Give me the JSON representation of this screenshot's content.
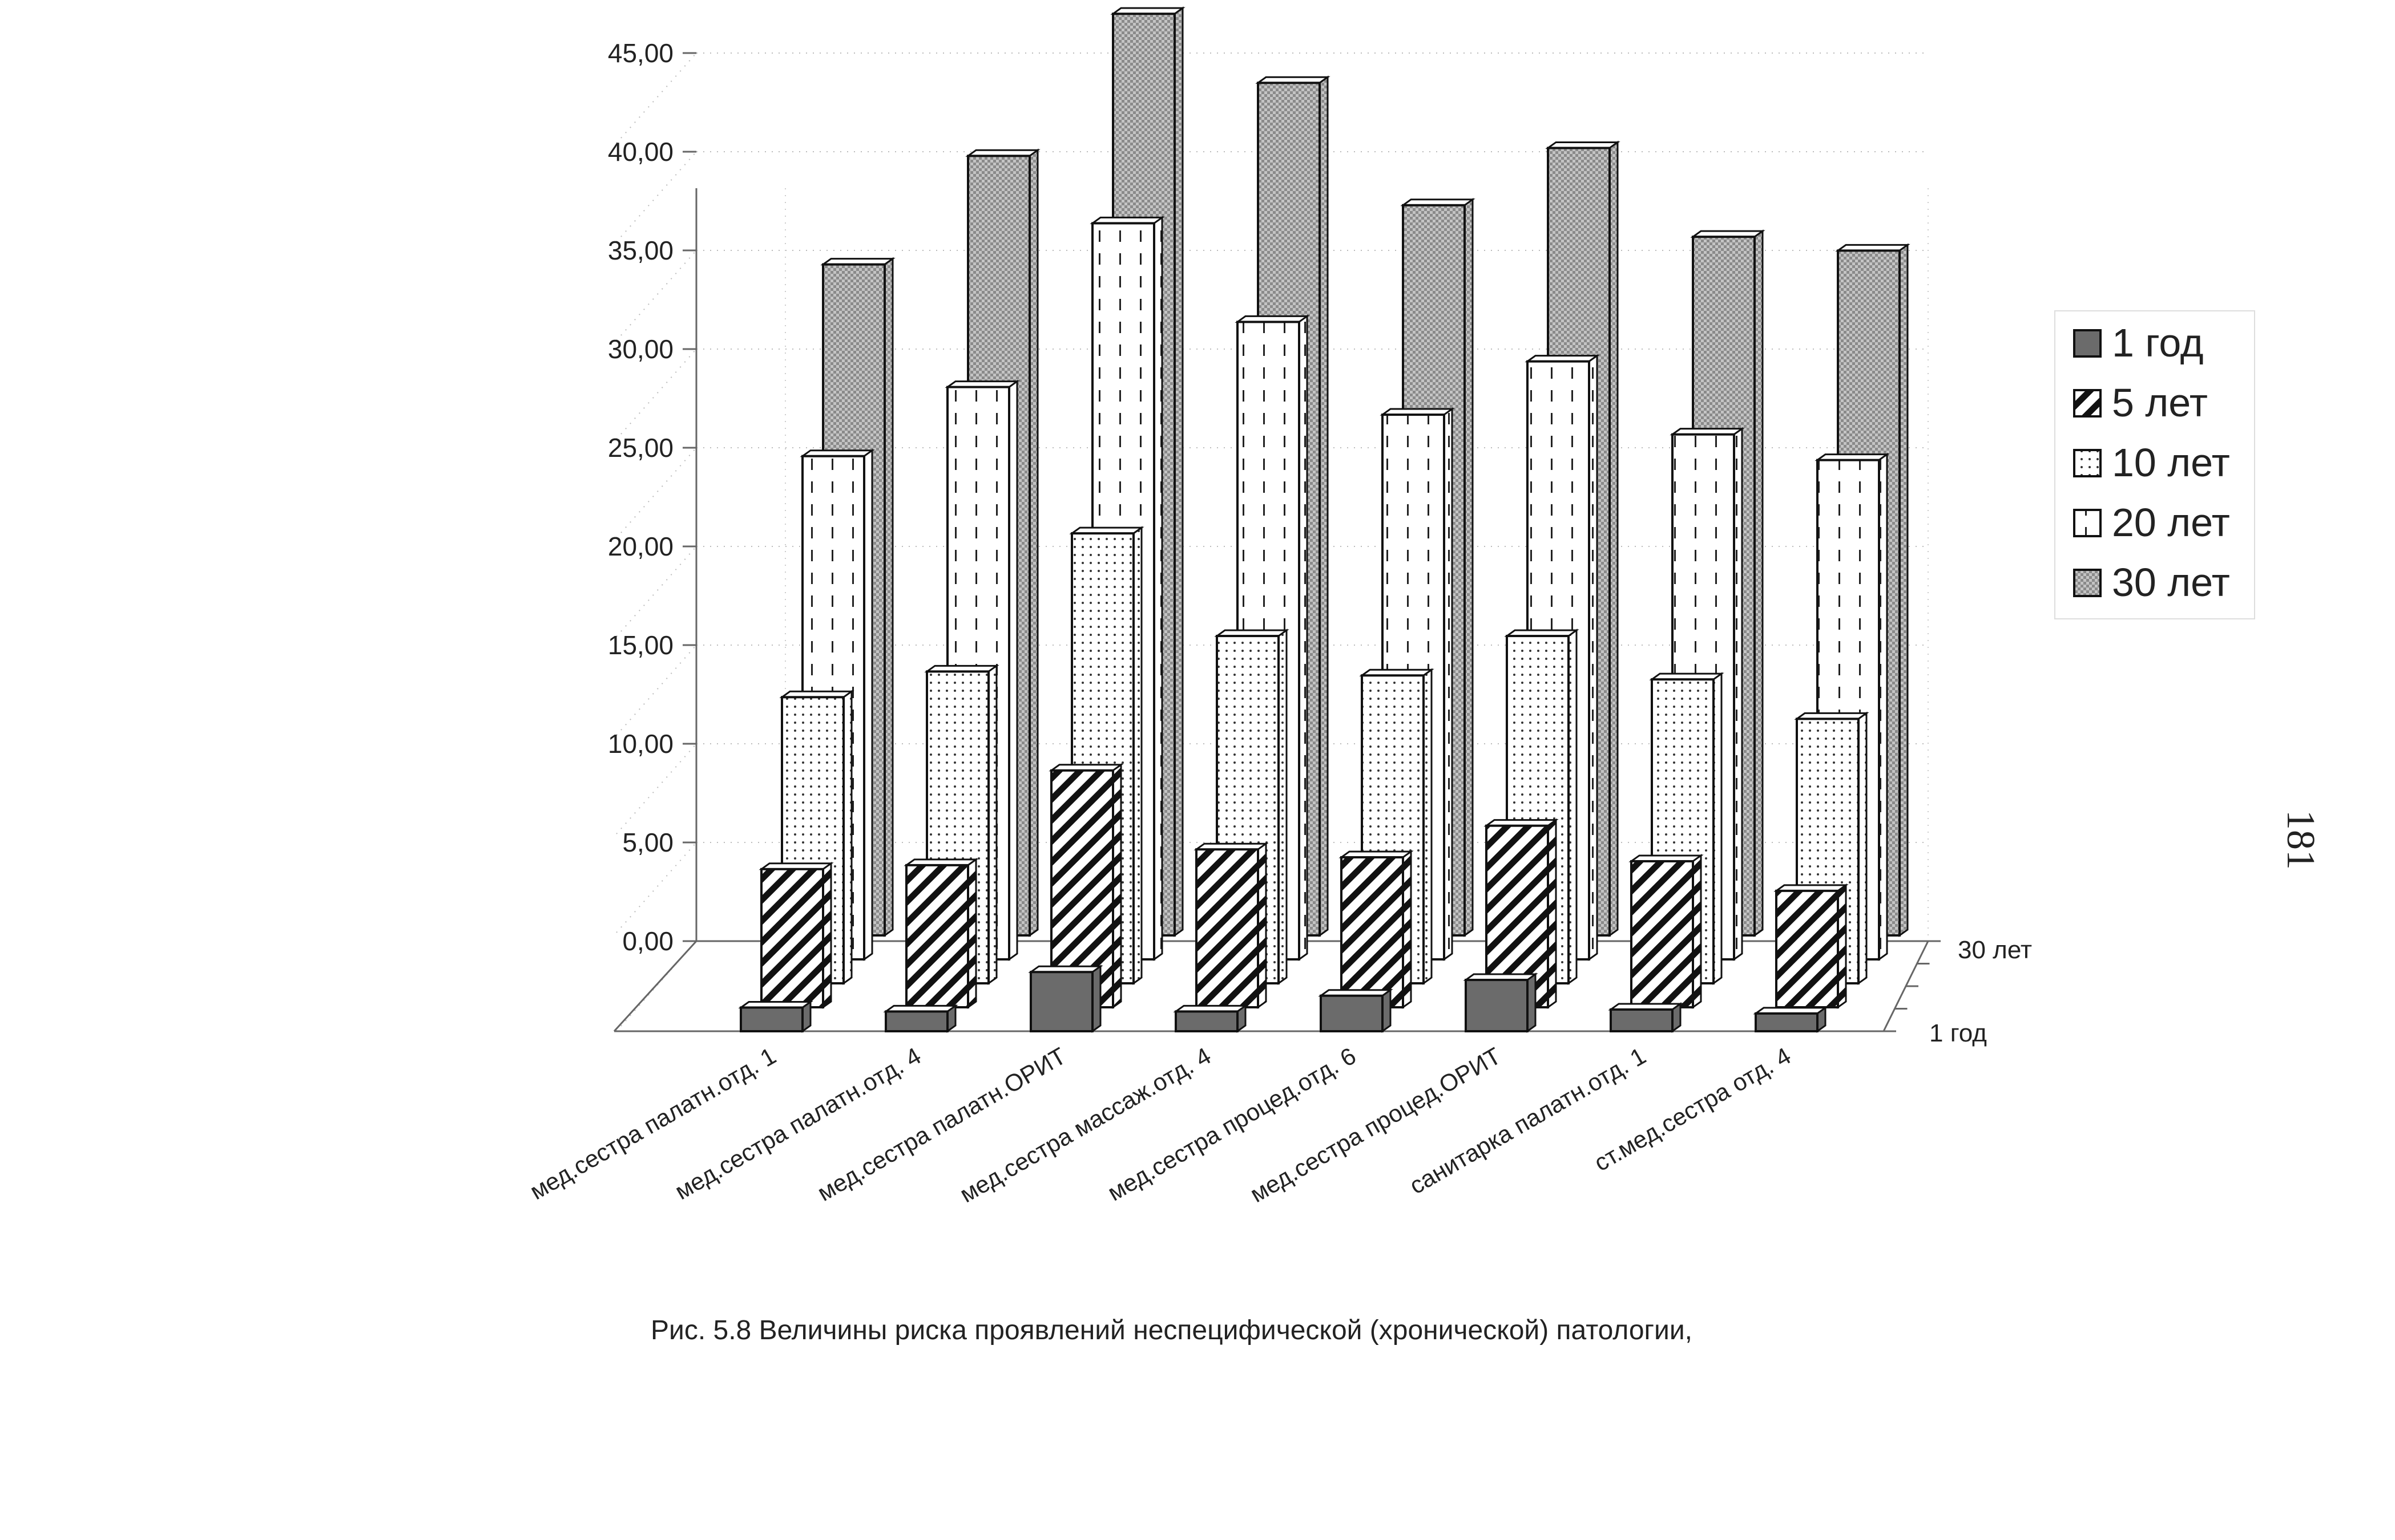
{
  "chart_data": {
    "type": "bar",
    "categories": [
      "мед.сестра палатн.отд. 1",
      "мед.сестра палатн.отд. 4",
      "мед.сестра палатн.ОРИТ",
      "мед.сестра массаж.отд. 4",
      "мед.сестра процед.отд. 6",
      "мед.сестра процед.ОРИТ",
      "санитарка палатн.отд. 1",
      "ст.мед.сестра отд. 4"
    ],
    "series": [
      {
        "name": "1 год",
        "values": [
          1.2,
          1.0,
          3.0,
          1.0,
          1.8,
          2.6,
          1.1,
          0.9
        ],
        "color": "#6b6b6b",
        "pattern": "solid-dark"
      },
      {
        "name": "5 лет",
        "values": [
          7.0,
          7.2,
          12.0,
          8.0,
          7.6,
          9.2,
          7.4,
          5.9
        ],
        "color": "#ffffff",
        "pattern": "diagonal-hatch"
      },
      {
        "name": "10 лет",
        "values": [
          14.5,
          15.8,
          22.8,
          17.6,
          15.6,
          17.6,
          15.4,
          13.4
        ],
        "color": "#ffffff",
        "pattern": "dotted"
      },
      {
        "name": "20 лет",
        "values": [
          25.5,
          29.0,
          37.3,
          32.3,
          27.6,
          30.3,
          26.6,
          25.3
        ],
        "color": "#ffffff",
        "pattern": "dashed-vertical"
      },
      {
        "name": "30 лет",
        "values": [
          34.0,
          39.5,
          46.7,
          43.2,
          37.0,
          39.9,
          35.4,
          34.7
        ],
        "color": "#bdbdbd",
        "pattern": "crosshatch"
      }
    ],
    "yticks": [
      "0,00",
      "5,00",
      "10,00",
      "15,00",
      "20,00",
      "25,00",
      "30,00",
      "35,00",
      "40,00",
      "45,00"
    ],
    "ylim": [
      0,
      45
    ],
    "depth_labels": [
      "30 лет",
      "1 год"
    ],
    "legend_position": "right",
    "grid": true
  },
  "caption": "Рис. 5.8 Величины риска проявлений неспецифической (хронической) патологии,",
  "page_number": "181"
}
